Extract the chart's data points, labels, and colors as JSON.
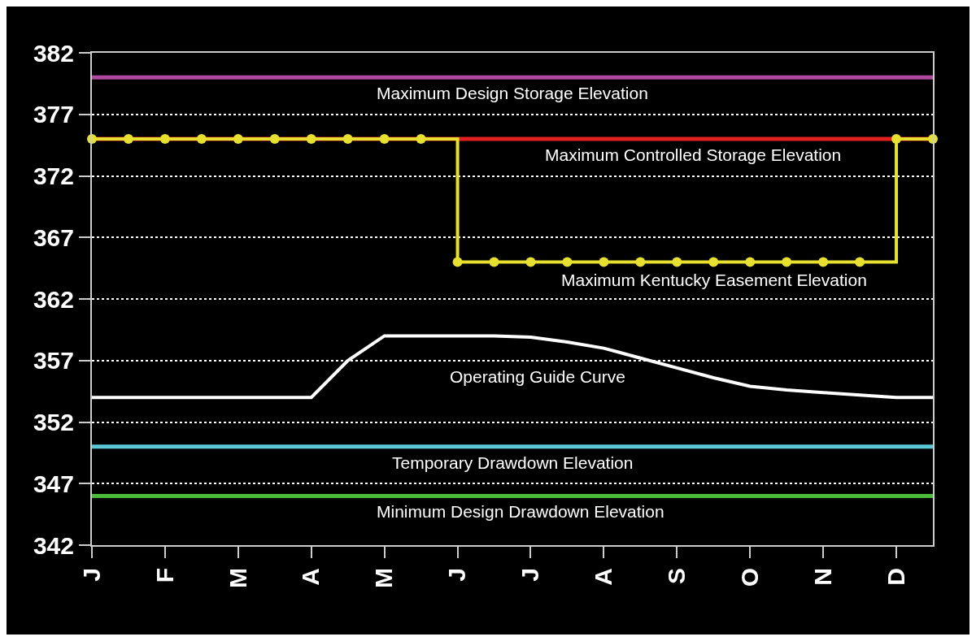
{
  "chart_data": {
    "type": "line",
    "categories": [
      "J",
      null,
      "F",
      null,
      "M",
      null,
      "A",
      null,
      "M",
      null,
      "J",
      null,
      "J",
      null,
      "A",
      null,
      "S",
      null,
      "O",
      null,
      "N",
      null,
      "D",
      null
    ],
    "ylim": [
      342,
      382
    ],
    "yticks": [
      342,
      347,
      352,
      357,
      362,
      367,
      372,
      377,
      382
    ],
    "grid": "y",
    "legend": false,
    "line_style": "solid",
    "ref_lines": [
      {
        "axis": "y",
        "value": 380,
        "label": "Maximum Design Storage Elevation",
        "color": "#b04aa0"
      },
      {
        "axis": "y",
        "value": 375,
        "label": "Maximum Controlled Storage Elevation",
        "color": "#e02020"
      },
      {
        "axis": "y",
        "value": 350,
        "label": "Temporary Drawdown Elevation",
        "color": "#5bc8d8"
      },
      {
        "axis": "y",
        "value": 346,
        "label": "Minimum Design Drawdown Elevation",
        "color": "#4cbb3c"
      }
    ],
    "series": [
      {
        "name": "Maximum Kentucky Easement Elevation",
        "type": "step",
        "color": "#e8e030",
        "marker": "circle",
        "values": [
          375,
          375,
          375,
          375,
          375,
          375,
          375,
          375,
          375,
          375,
          365,
          365,
          365,
          365,
          365,
          365,
          365,
          365,
          365,
          365,
          365,
          365,
          375,
          375
        ]
      },
      {
        "name": "Operating Guide Curve",
        "color": "#ffffff",
        "marker": "none",
        "values": [
          354,
          354,
          354,
          354,
          354,
          354,
          354,
          357,
          359,
          359,
          359,
          359,
          358.9,
          358.5,
          358,
          357.2,
          356.4,
          355.6,
          354.9,
          354.6,
          354.4,
          354.2,
          354,
          354
        ]
      }
    ]
  }
}
